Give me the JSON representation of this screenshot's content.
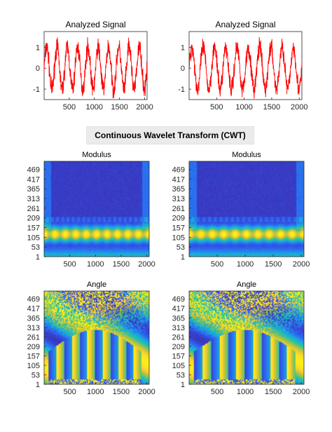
{
  "figure_title": "Continuous Wavelet Transform (CWT)",
  "colors": {
    "signal": "#ff0000",
    "axis": "#262626",
    "title_box": "#ebebeb",
    "colormap": [
      "#3e26a8",
      "#2f5ff2",
      "#1aa8e0",
      "#27c2a8",
      "#a8c33e",
      "#ffd02c",
      "#f9fb0e"
    ]
  },
  "chart_data": [
    {
      "type": "line",
      "title": "Analyzed Signal",
      "position": "top-left",
      "xlim": [
        0,
        2048
      ],
      "ylim": [
        -1.5,
        1.75
      ],
      "xticks": [
        "500",
        "1000",
        "1500",
        "2000"
      ],
      "yticks": [
        "-1",
        "0",
        "1"
      ],
      "series": [
        {
          "cycles": 10,
          "amplitude": 1.0,
          "noise": 0.35
        }
      ]
    },
    {
      "type": "line",
      "title": "Analyzed Signal",
      "position": "top-right",
      "xlim": [
        0,
        2048
      ],
      "ylim": [
        -1.5,
        1.75
      ],
      "xticks": [
        "500",
        "1000",
        "1500",
        "2000"
      ],
      "yticks": [
        "-1",
        "0",
        "1"
      ],
      "series": [
        {
          "cycles": 10,
          "amplitude": 1.0,
          "noise": 0.35
        }
      ]
    },
    {
      "type": "heatmap",
      "title": "Modulus",
      "position": "middle-left",
      "xlim": [
        0,
        2048
      ],
      "ylim": [
        1,
        512
      ],
      "xticks": [
        "500",
        "1000",
        "1500",
        "2000"
      ],
      "yticks": [
        "1",
        "53",
        "105",
        "157",
        "209",
        "261",
        "313",
        "365",
        "417",
        "469"
      ],
      "ridge_scale": 120
    },
    {
      "type": "heatmap",
      "title": "Modulus",
      "position": "middle-right",
      "xlim": [
        0,
        2048
      ],
      "ylim": [
        1,
        512
      ],
      "xticks": [
        "500",
        "1000",
        "1500",
        "2000"
      ],
      "yticks": [
        "1",
        "53",
        "105",
        "157",
        "209",
        "261",
        "313",
        "365",
        "417",
        "469"
      ],
      "ridge_scale": 120
    },
    {
      "type": "heatmap",
      "title": "Angle",
      "position": "bottom-left",
      "xlim": [
        0,
        2048
      ],
      "ylim": [
        1,
        512
      ],
      "xticks": [
        "500",
        "1000",
        "1500",
        "2000"
      ],
      "yticks": [
        "1",
        "53",
        "105",
        "157",
        "209",
        "261",
        "313",
        "365",
        "417",
        "469"
      ],
      "stripes": 6
    },
    {
      "type": "heatmap",
      "title": "Angle",
      "position": "bottom-right",
      "xlim": [
        0,
        2048
      ],
      "ylim": [
        1,
        512
      ],
      "xticks": [
        "500",
        "1000",
        "1500",
        "2000"
      ],
      "yticks": [
        "1",
        "53",
        "105",
        "157",
        "209",
        "261",
        "313",
        "365",
        "417",
        "469"
      ],
      "stripes": 6
    }
  ]
}
